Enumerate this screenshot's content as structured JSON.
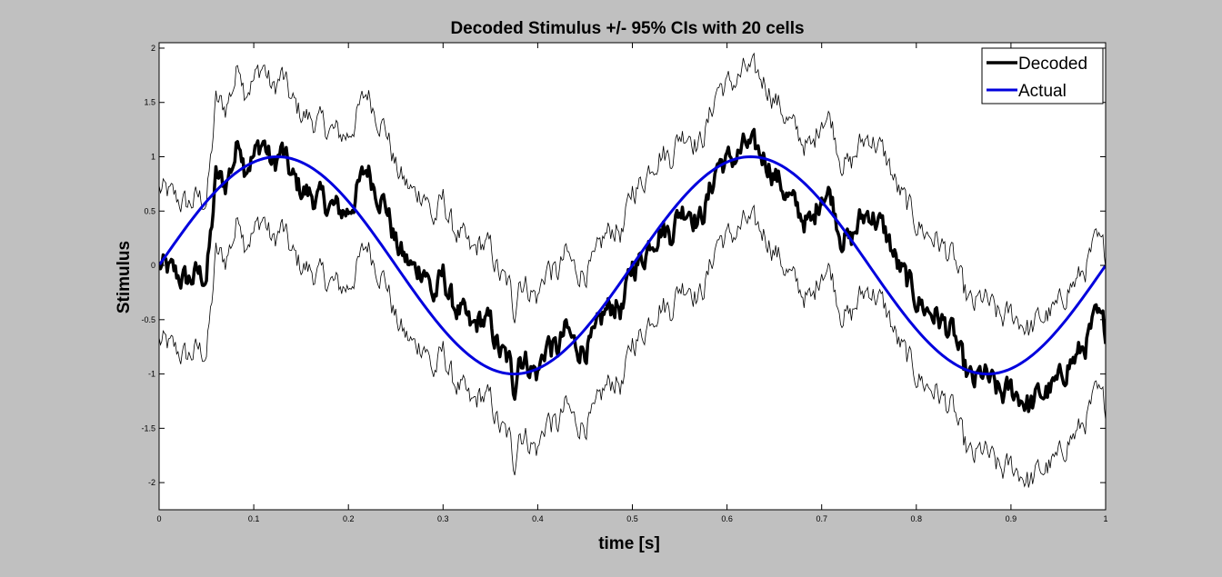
{
  "chart_data": {
    "type": "line",
    "title": "Decoded Stimulus +/- 95% CIs with 20 cells",
    "xlabel": "time [s]",
    "ylabel": "Stimulus",
    "xlim": [
      0,
      1
    ],
    "ylim": [
      -2.25,
      2.05
    ],
    "xticks": [
      0,
      0.1,
      0.2,
      0.3,
      0.4,
      0.5,
      0.6,
      0.7,
      0.8,
      0.9,
      1
    ],
    "xtick_labels": [
      "0",
      "0.1",
      "0.2",
      "0.3",
      "0.4",
      "0.5",
      "0.6",
      "0.7",
      "0.8",
      "0.9",
      "1"
    ],
    "yticks": [
      -2,
      -1.5,
      -1,
      -0.5,
      0,
      0.5,
      1,
      1.5,
      2
    ],
    "ytick_labels": [
      "-2",
      "-1.5",
      "-1",
      "-0.5",
      "0",
      "0.5",
      "1",
      "1.5",
      "2"
    ],
    "grid": false,
    "legend_position": "top-right",
    "ci_halfwidth": 0.7,
    "series": [
      {
        "name": "Decoded",
        "color": "#000000",
        "x": [
          0,
          0.01,
          0.02,
          0.03,
          0.04,
          0.05,
          0.055,
          0.06,
          0.07,
          0.08,
          0.085,
          0.09,
          0.1,
          0.11,
          0.12,
          0.13,
          0.14,
          0.15,
          0.16,
          0.17,
          0.18,
          0.19,
          0.2,
          0.21,
          0.22,
          0.23,
          0.24,
          0.25,
          0.26,
          0.27,
          0.28,
          0.29,
          0.3,
          0.31,
          0.32,
          0.33,
          0.34,
          0.35,
          0.36,
          0.37,
          0.375,
          0.38,
          0.39,
          0.4,
          0.41,
          0.42,
          0.43,
          0.44,
          0.45,
          0.46,
          0.47,
          0.48,
          0.49,
          0.5,
          0.51,
          0.52,
          0.53,
          0.54,
          0.55,
          0.56,
          0.57,
          0.58,
          0.59,
          0.6,
          0.61,
          0.62,
          0.63,
          0.64,
          0.65,
          0.66,
          0.67,
          0.68,
          0.69,
          0.7,
          0.71,
          0.72,
          0.73,
          0.74,
          0.75,
          0.76,
          0.77,
          0.78,
          0.79,
          0.8,
          0.81,
          0.82,
          0.83,
          0.84,
          0.85,
          0.86,
          0.87,
          0.88,
          0.89,
          0.9,
          0.91,
          0.92,
          0.93,
          0.94,
          0.95,
          0.96,
          0.97,
          0.98,
          0.99,
          1
        ],
        "values": [
          0,
          -0.05,
          -0.1,
          -0.15,
          -0.08,
          -0.1,
          0.3,
          0.8,
          0.75,
          1.0,
          1.2,
          0.95,
          1.0,
          1.15,
          0.9,
          1.05,
          0.8,
          0.7,
          0.65,
          0.6,
          0.55,
          0.5,
          0.5,
          0.7,
          0.9,
          0.7,
          0.55,
          0.2,
          0.05,
          -0.05,
          0.0,
          -0.3,
          -0.1,
          -0.35,
          -0.45,
          -0.6,
          -0.5,
          -0.55,
          -0.8,
          -0.9,
          -1.15,
          -0.8,
          -0.9,
          -1.0,
          -0.7,
          -0.8,
          -0.6,
          -0.75,
          -0.75,
          -0.7,
          -0.45,
          -0.35,
          -0.4,
          0.0,
          0.05,
          0.25,
          0.35,
          0.3,
          0.5,
          0.55,
          0.4,
          0.6,
          0.95,
          0.95,
          1.0,
          1.1,
          1.05,
          1.0,
          0.85,
          0.7,
          0.55,
          0.45,
          0.35,
          0.7,
          0.65,
          0.3,
          0.2,
          0.4,
          0.5,
          0.4,
          0.25,
          0.0,
          -0.15,
          -0.3,
          -0.4,
          -0.45,
          -0.55,
          -0.65,
          -0.95,
          -1.1,
          -1.0,
          -1.1,
          -1.2,
          -1.15,
          -1.2,
          -1.3,
          -1.2,
          -1.15,
          -1.1,
          -0.9,
          -0.85,
          -0.7,
          -0.5,
          -0.6
        ]
      },
      {
        "name": "Actual",
        "color": "#0000dd",
        "function": "sin(2*pi*2*t)",
        "frequency_hz": 2,
        "amplitude": 1
      }
    ]
  }
}
